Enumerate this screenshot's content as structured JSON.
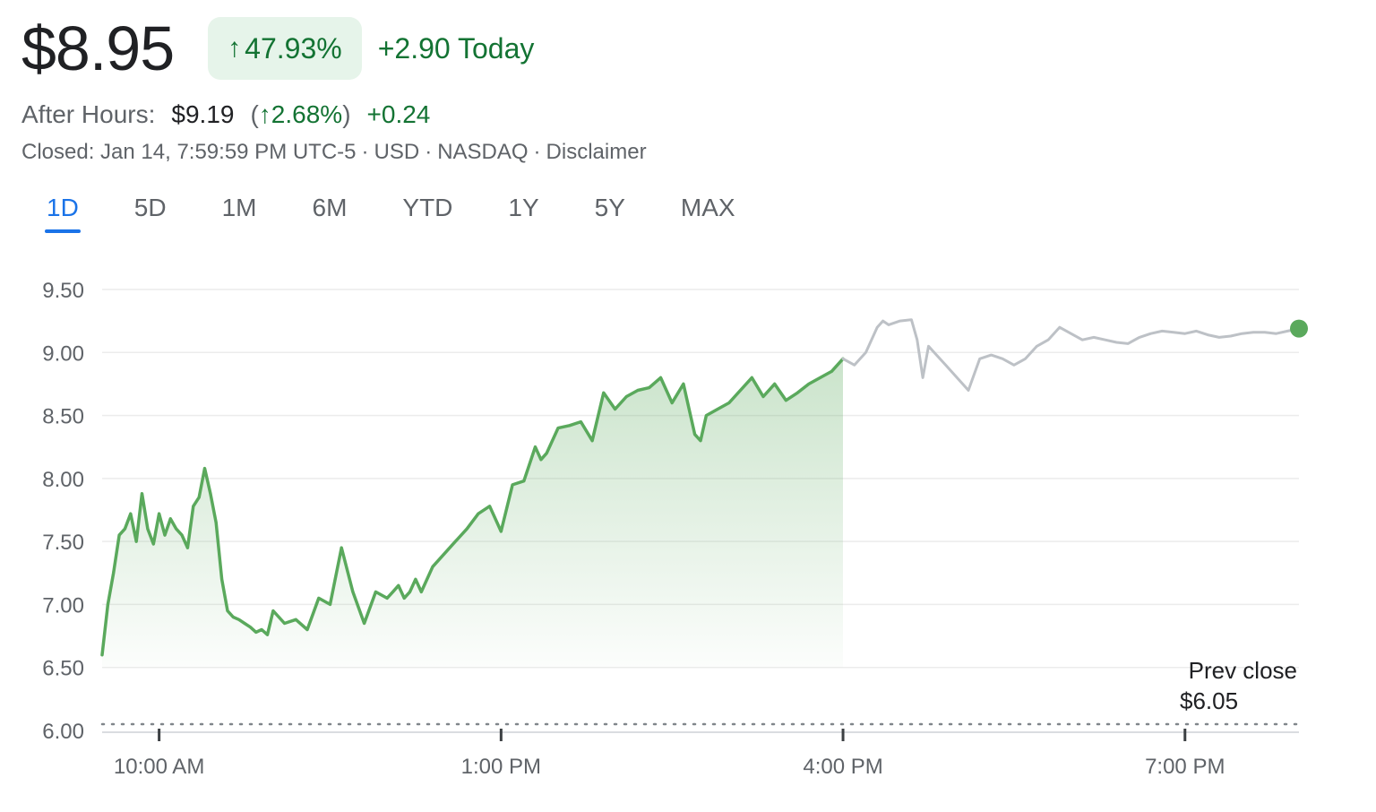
{
  "quote": {
    "price": "$8.95",
    "change_pct": "47.93%",
    "change_pct_arrow": "↑",
    "change_today": "+2.90 Today",
    "after_hours_label": "After Hours:",
    "after_hours_price": "$9.19",
    "after_hours_pct_open": "(",
    "after_hours_pct_arrow": "↑",
    "after_hours_pct": "2.68%",
    "after_hours_pct_close": ")",
    "after_hours_change": "+0.24",
    "meta": {
      "closed": "Closed: Jan 14, 7:59:59 PM UTC-5",
      "currency": "USD",
      "exchange": "NASDAQ",
      "disclaimer": "Disclaimer",
      "separator": "·"
    }
  },
  "tabs": [
    {
      "label": "1D",
      "active": true
    },
    {
      "label": "5D",
      "active": false
    },
    {
      "label": "1M",
      "active": false
    },
    {
      "label": "6M",
      "active": false
    },
    {
      "label": "YTD",
      "active": false
    },
    {
      "label": "1Y",
      "active": false
    },
    {
      "label": "5Y",
      "active": false
    },
    {
      "label": "MAX",
      "active": false
    }
  ],
  "colors": {
    "up_green": "#137333",
    "line_green": "#5aa95c",
    "after_hours_gray": "#bdc1c6",
    "badge_bg": "#e6f4ea",
    "tab_active": "#1a73e8",
    "grid": "#ececec"
  },
  "chart_data": {
    "type": "line",
    "title": "",
    "xlabel": "",
    "ylabel": "",
    "ylim": [
      6.0,
      9.5
    ],
    "yticks": [
      "9.50",
      "9.00",
      "8.50",
      "8.00",
      "7.50",
      "7.00",
      "6.50",
      "6.00"
    ],
    "xticks": [
      {
        "label": "10:00 AM",
        "hours": 10
      },
      {
        "label": "1:00 PM",
        "hours": 13
      },
      {
        "label": "4:00 PM",
        "hours": 16
      },
      {
        "label": "7:00 PM",
        "hours": 19
      }
    ],
    "xlim_hours": [
      9.5,
      20.0
    ],
    "grid": true,
    "prev_close": {
      "label": "Prev close",
      "value_label": "$6.05",
      "value": 6.05
    },
    "series": [
      {
        "session": "regular",
        "x_hours": [
          9.5,
          9.55,
          9.6,
          9.65,
          9.7,
          9.75,
          9.8,
          9.85,
          9.9,
          9.95,
          10.0,
          10.05,
          10.1,
          10.15,
          10.2,
          10.25,
          10.3,
          10.35,
          10.4,
          10.45,
          10.5,
          10.55,
          10.6,
          10.65,
          10.7,
          10.75,
          10.8,
          10.85,
          10.9,
          10.95,
          11.0,
          11.1,
          11.2,
          11.3,
          11.4,
          11.5,
          11.6,
          11.7,
          11.8,
          11.9,
          12.0,
          12.05,
          12.1,
          12.15,
          12.2,
          12.25,
          12.3,
          12.4,
          12.5,
          12.6,
          12.7,
          12.8,
          12.9,
          13.0,
          13.1,
          13.2,
          13.3,
          13.35,
          13.4,
          13.5,
          13.6,
          13.7,
          13.8,
          13.9,
          14.0,
          14.1,
          14.2,
          14.3,
          14.4,
          14.5,
          14.6,
          14.7,
          14.75,
          14.8,
          14.9,
          15.0,
          15.1,
          15.2,
          15.3,
          15.4,
          15.5,
          15.6,
          15.7,
          15.8,
          15.9,
          16.0
        ],
        "values": [
          6.6,
          7.0,
          7.25,
          7.55,
          7.6,
          7.72,
          7.5,
          7.88,
          7.6,
          7.48,
          7.72,
          7.55,
          7.68,
          7.6,
          7.55,
          7.45,
          7.78,
          7.85,
          8.08,
          7.88,
          7.65,
          7.2,
          6.95,
          6.9,
          6.88,
          6.85,
          6.82,
          6.78,
          6.8,
          6.76,
          6.95,
          6.85,
          6.88,
          6.8,
          7.05,
          7.0,
          7.45,
          7.1,
          6.85,
          7.1,
          7.05,
          7.1,
          7.15,
          7.05,
          7.1,
          7.2,
          7.1,
          7.3,
          7.4,
          7.5,
          7.6,
          7.72,
          7.78,
          7.58,
          7.95,
          7.98,
          8.25,
          8.15,
          8.2,
          8.4,
          8.42,
          8.45,
          8.3,
          8.68,
          8.55,
          8.65,
          8.7,
          8.72,
          8.8,
          8.6,
          8.75,
          8.35,
          8.3,
          8.5,
          8.55,
          8.6,
          8.7,
          8.8,
          8.65,
          8.75,
          8.62,
          8.68,
          8.75,
          8.8,
          8.85,
          8.95
        ]
      },
      {
        "session": "after_hours",
        "x_hours": [
          16.0,
          16.1,
          16.2,
          16.3,
          16.35,
          16.4,
          16.5,
          16.6,
          16.65,
          16.7,
          16.75,
          16.8,
          16.9,
          17.0,
          17.05,
          17.1,
          17.2,
          17.3,
          17.4,
          17.5,
          17.6,
          17.7,
          17.8,
          17.9,
          18.0,
          18.1,
          18.2,
          18.3,
          18.4,
          18.5,
          18.6,
          18.7,
          18.8,
          18.9,
          19.0,
          19.1,
          19.2,
          19.3,
          19.4,
          19.5,
          19.6,
          19.7,
          19.8,
          19.9,
          20.0
        ],
        "values": [
          8.95,
          8.9,
          9.0,
          9.2,
          9.25,
          9.22,
          9.25,
          9.26,
          9.1,
          8.8,
          9.05,
          9.0,
          8.9,
          8.8,
          8.75,
          8.7,
          8.95,
          8.98,
          8.95,
          8.9,
          8.95,
          9.05,
          9.1,
          9.2,
          9.15,
          9.1,
          9.12,
          9.1,
          9.08,
          9.07,
          9.12,
          9.15,
          9.17,
          9.16,
          9.15,
          9.17,
          9.14,
          9.12,
          9.13,
          9.15,
          9.16,
          9.16,
          9.15,
          9.17,
          9.19
        ]
      }
    ],
    "last_point": {
      "x_hours": 20.0,
      "value": 9.19
    }
  }
}
